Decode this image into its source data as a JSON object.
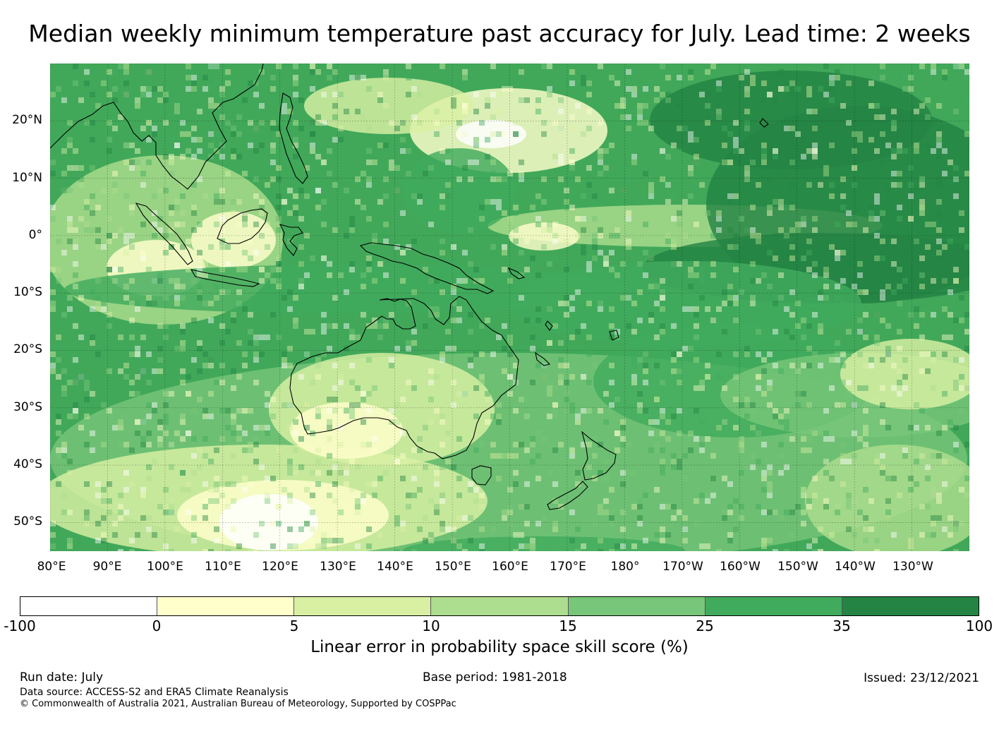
{
  "title": "Median weekly minimum temperature past accuracy for July. Lead time: 2 weeks",
  "map": {
    "lat_labels": [
      "20°N",
      "10°N",
      "0°",
      "10°S",
      "20°S",
      "30°S",
      "40°S",
      "50°S"
    ],
    "lon_labels": [
      "80°E",
      "90°E",
      "100°E",
      "110°E",
      "120°E",
      "130°E",
      "140°E",
      "150°E",
      "160°E",
      "170°E",
      "180°",
      "170°W",
      "160°W",
      "150°W",
      "140°W",
      "130°W"
    ],
    "extent": {
      "lon_min": 80,
      "lon_max": 240,
      "lat_min": -55,
      "lat_max": 30
    },
    "coastline_color": "#000000"
  },
  "colorbar": {
    "label": "Linear error in probability space skill score (%)",
    "ticks": [
      "-100",
      "0",
      "5",
      "10",
      "15",
      "25",
      "35",
      "100"
    ],
    "colors": [
      "#ffffff",
      "#ffffcc",
      "#d9f0a3",
      "#addd8e",
      "#78c679",
      "#41ab5d",
      "#238443"
    ]
  },
  "footer": {
    "run_date": "Run date: July",
    "base_period": "Base period: 1981-2018",
    "issued": "Issued: 23/12/2021",
    "data_source": "Data source: ACCESS-S2 and ERA5 Climate Reanalysis",
    "copyright": "© Commonwealth of Australia 2021, Australian Bureau of Meteorology, Supported by COSPPac"
  }
}
